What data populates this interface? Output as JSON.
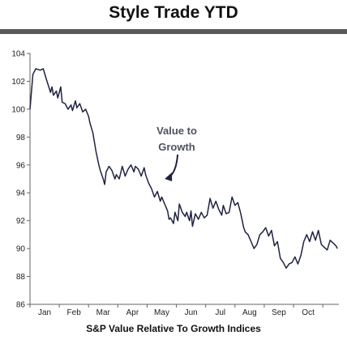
{
  "title": "Style Trade YTD",
  "chart_data": {
    "type": "line",
    "title": "Style Trade YTD",
    "xlabel": "S&P Value Relative To Growth Indices",
    "ylabel": "",
    "ylim": [
      86,
      104
    ],
    "yticks": [
      86,
      88,
      90,
      92,
      94,
      96,
      98,
      100,
      102,
      104
    ],
    "xlim": [
      0,
      10.55
    ],
    "xtick_labels": [
      "Jan",
      "Feb",
      "Mar",
      "Apr",
      "May",
      "Jun",
      "Jul",
      "Aug",
      "Sep",
      "Oct"
    ],
    "grid": false,
    "annotation": {
      "lines": [
        "Value to",
        "Growth"
      ],
      "arrow_to": {
        "x": 4.6,
        "y": 95.0
      }
    },
    "series": [
      {
        "color": "#1f2340",
        "x": [
          0,
          0.1,
          0.2,
          0.35,
          0.45,
          0.55,
          0.7,
          0.75,
          0.8,
          0.9,
          0.95,
          1.05,
          1.1,
          1.2,
          1.3,
          1.4,
          1.45,
          1.55,
          1.6,
          1.7,
          1.8,
          1.9,
          2.0,
          2.05,
          2.15,
          2.25,
          2.35,
          2.4,
          2.5,
          2.55,
          2.6,
          2.7,
          2.8,
          2.9,
          2.95,
          3.05,
          3.15,
          3.25,
          3.35,
          3.45,
          3.55,
          3.6,
          3.7,
          3.8,
          3.9,
          3.95,
          4.05,
          4.15,
          4.25,
          4.35,
          4.45,
          4.5,
          4.6,
          4.7,
          4.75,
          4.8,
          4.9,
          4.95,
          5.05,
          5.1,
          5.2,
          5.3,
          5.35,
          5.45,
          5.5,
          5.55,
          5.65,
          5.75,
          5.85,
          5.95,
          6.05,
          6.15,
          6.25,
          6.35,
          6.45,
          6.55,
          6.6,
          6.7,
          6.8,
          6.9,
          7.0,
          7.1,
          7.2,
          7.3,
          7.35,
          7.45,
          7.55,
          7.65,
          7.75,
          7.85,
          7.95,
          8.05,
          8.15,
          8.25,
          8.35,
          8.45,
          8.55,
          8.65,
          8.75,
          8.85,
          8.95,
          9.05,
          9.15,
          9.25,
          9.35,
          9.45,
          9.55,
          9.65,
          9.75,
          9.85,
          9.95,
          10.05,
          10.15,
          10.25,
          10.35,
          10.45,
          10.5
        ],
        "y": [
          100.0,
          102.5,
          102.9,
          102.8,
          102.9,
          102.2,
          101.2,
          101.6,
          101.0,
          101.3,
          100.8,
          101.6,
          100.5,
          100.4,
          100.0,
          100.3,
          99.9,
          100.6,
          100.1,
          100.4,
          99.8,
          100.0,
          99.5,
          99.0,
          98.3,
          97.0,
          96.0,
          95.6,
          95.0,
          94.6,
          95.5,
          95.9,
          95.6,
          95.0,
          95.3,
          95.0,
          95.9,
          95.2,
          95.7,
          96.0,
          95.5,
          95.9,
          95.7,
          95.2,
          95.8,
          95.3,
          94.7,
          94.3,
          93.7,
          94.1,
          93.4,
          93.7,
          93.2,
          92.7,
          92.1,
          92.2,
          91.8,
          92.6,
          92.0,
          93.2,
          92.6,
          92.3,
          92.6,
          92.0,
          92.7,
          91.6,
          92.5,
          92.1,
          92.6,
          92.2,
          92.4,
          93.6,
          92.9,
          93.4,
          92.8,
          92.4,
          93.1,
          92.5,
          92.6,
          93.7,
          93.1,
          93.3,
          92.5,
          91.5,
          91.2,
          91.0,
          90.5,
          90.0,
          90.3,
          91.0,
          91.2,
          91.5,
          90.9,
          91.3,
          90.2,
          90.5,
          89.3,
          89.0,
          88.6,
          88.9,
          89.0,
          89.4,
          88.9,
          89.5,
          90.5,
          91.0,
          90.5,
          91.2,
          90.6,
          91.3,
          90.3,
          90.1,
          89.9,
          90.6,
          90.4,
          90.2,
          90.0
        ]
      }
    ]
  }
}
